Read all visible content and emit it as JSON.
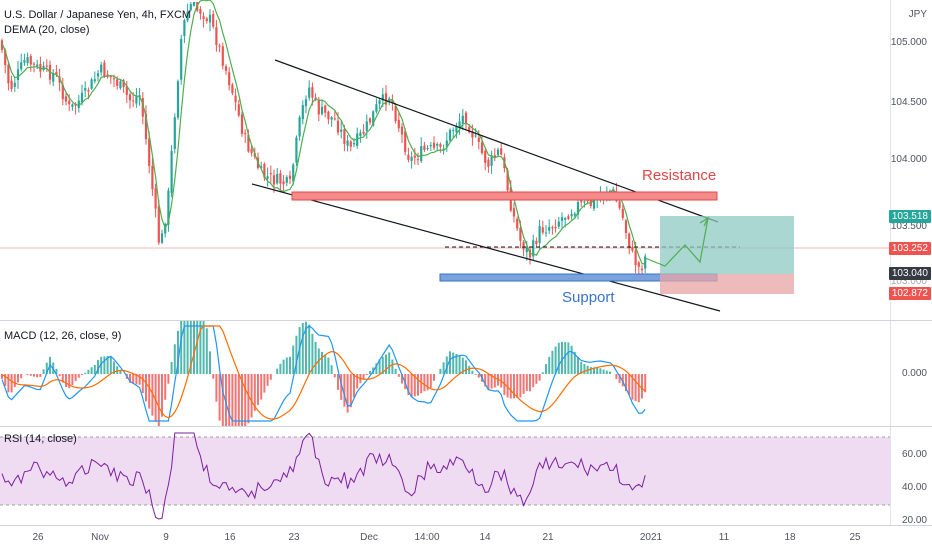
{
  "main": {
    "symbol_title": "U.S. Dollar / Japanese Yen, 4h, FXCM",
    "indicator": "DEMA (20, close)",
    "currency": "JPY",
    "y_ticks": [
      "105.000",
      "104.500",
      "104.000",
      "103.500",
      "103.000"
    ],
    "price_tags": [
      {
        "value": "103.518",
        "color": "#26a69a"
      },
      {
        "value": "103.252",
        "color": "#ef5350"
      },
      {
        "value": "103.040",
        "color": "#363a45"
      },
      {
        "value": "102.872",
        "color": "#ef5350"
      }
    ],
    "annotations": {
      "resistance": "Resistance",
      "support": "Support"
    },
    "colors": {
      "resistance": "#f05050",
      "support": "#4a7fd0",
      "resistance_text": "#e04848",
      "support_text": "#3a73c8",
      "up_candle": "#26a69a",
      "down_candle": "#ef5350",
      "dema": "#4caf50",
      "target_zone": "#8fc9c3",
      "stop_zone": "#e8a4a4"
    }
  },
  "macd": {
    "label": "MACD (12, 26, close, 9)",
    "y_ticks": [
      "0.000"
    ],
    "colors": {
      "macd": "#2196f3",
      "signal": "#ff6d00",
      "hist_up": "#26a69a",
      "hist_down": "#ef5350"
    }
  },
  "rsi": {
    "label": "RSI (14, close)",
    "y_ticks": [
      "60.00",
      "40.00",
      "20.00"
    ],
    "colors": {
      "line": "#7b1fa2",
      "band": "#e1bee7"
    }
  },
  "x_axis": {
    "ticks": [
      "26",
      "Nov",
      "9",
      "16",
      "23",
      "Dec",
      "14:00",
      "14",
      "21",
      "2021",
      "11",
      "18",
      "25"
    ]
  }
}
